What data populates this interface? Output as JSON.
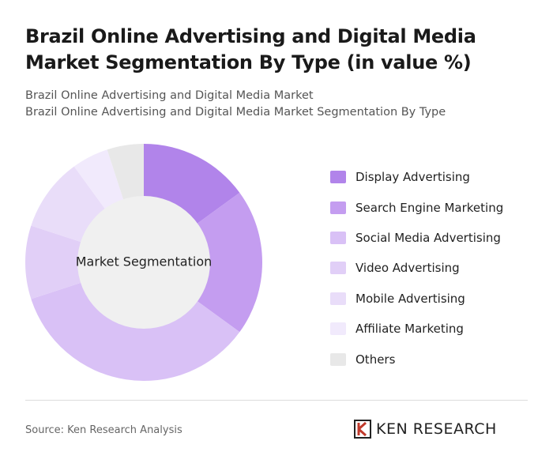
{
  "chart_data": {
    "type": "donut",
    "title": "Brazil Online Advertising and Digital Media Market Segmentation By Type (in value %)",
    "subtitles": [
      "Brazil Online Advertising and Digital Media Market",
      "Brazil Online Advertising and Digital Media Market Segmentation By Type"
    ],
    "center_label": "Market Segmentation",
    "categories": [
      "Display Advertising",
      "Search Engine Marketing",
      "Social Media Advertising",
      "Video Advertising",
      "Mobile Advertising",
      "Affiliate Marketing",
      "Others"
    ],
    "values": [
      15,
      20,
      35,
      10,
      10,
      5,
      5
    ],
    "colors": [
      "#b184ea",
      "#c49df0",
      "#d9c1f6",
      "#e1cff7",
      "#e9ddf9",
      "#f1eafc",
      "#e8e8e8"
    ]
  },
  "footer": {
    "source": "Source: Ken Research Analysis",
    "logo": "KEN RESEARCH"
  }
}
